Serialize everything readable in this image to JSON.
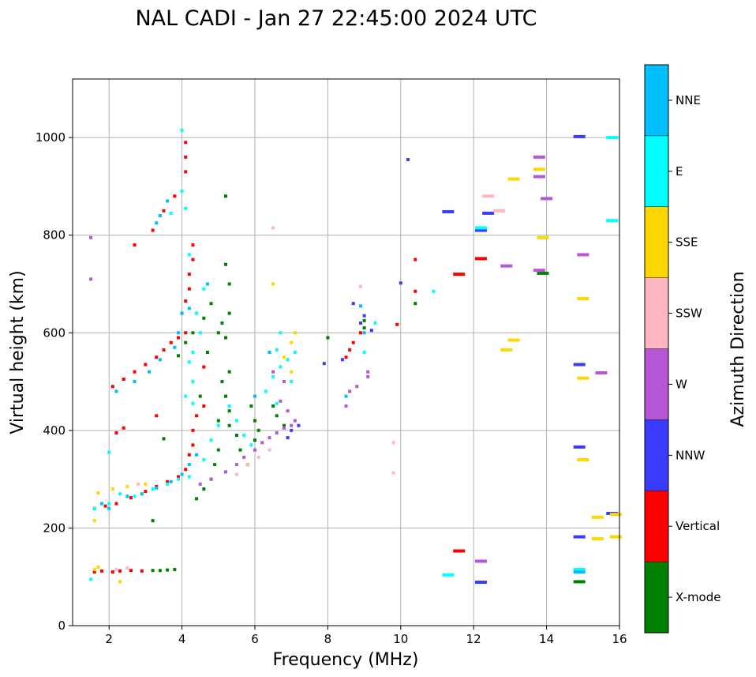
{
  "chart_data": {
    "type": "scatter",
    "title": "NAL CADI - Jan 27 22:45:00 2024 UTC",
    "xlabel": "Frequency (MHz)",
    "ylabel": "Virtual height (km)",
    "xlim": [
      1,
      16
    ],
    "ylim": [
      0,
      1120
    ],
    "xticks": [
      2,
      4,
      6,
      8,
      10,
      12,
      14,
      16
    ],
    "yticks": [
      0,
      200,
      400,
      600,
      800,
      1000
    ],
    "grid": true,
    "colorbar": {
      "label": "Azimuth Direction",
      "categories": [
        {
          "name": "X-mode",
          "color": "#008000"
        },
        {
          "name": "Vertical",
          "color": "#ff0000"
        },
        {
          "name": "NNW",
          "color": "#3b3bff"
        },
        {
          "name": "W",
          "color": "#b657d6"
        },
        {
          "name": "SSW",
          "color": "#ffb6c1"
        },
        {
          "name": "SSE",
          "color": "#ffd700"
        },
        {
          "name": "E",
          "color": "#00ffff"
        },
        {
          "name": "NNE",
          "color": "#00bfff"
        }
      ]
    },
    "series": [
      {
        "name": "X-mode",
        "points": [
          [
            3.2,
            113
          ],
          [
            3.4,
            113
          ],
          [
            3.6,
            114
          ],
          [
            3.8,
            115
          ],
          [
            3.2,
            215
          ],
          [
            3.5,
            383
          ],
          [
            3.9,
            553
          ],
          [
            4.1,
            580
          ],
          [
            4.3,
            600
          ],
          [
            4.6,
            630
          ],
          [
            4.8,
            660
          ],
          [
            4.5,
            470
          ],
          [
            4.7,
            560
          ],
          [
            5.0,
            600
          ],
          [
            5.2,
            740
          ],
          [
            5.3,
            700
          ],
          [
            5.3,
            640
          ],
          [
            5.1,
            620
          ],
          [
            5.2,
            590
          ],
          [
            5.3,
            520
          ],
          [
            5.1,
            500
          ],
          [
            5.2,
            470
          ],
          [
            5.3,
            440
          ],
          [
            5.0,
            420
          ],
          [
            5.3,
            410
          ],
          [
            5.5,
            390
          ],
          [
            5.6,
            360
          ],
          [
            5.8,
            330
          ],
          [
            5.0,
            360
          ],
          [
            4.9,
            330
          ],
          [
            4.8,
            300
          ],
          [
            4.6,
            280
          ],
          [
            4.4,
            260
          ],
          [
            5.2,
            880
          ],
          [
            6.0,
            380
          ],
          [
            6.0,
            420
          ],
          [
            5.9,
            450
          ],
          [
            6.1,
            400
          ],
          [
            6.5,
            450
          ],
          [
            6.6,
            430
          ],
          [
            6.8,
            410
          ],
          [
            8.0,
            590
          ],
          [
            9.0,
            610
          ],
          [
            9.0,
            625
          ],
          [
            10.4,
            660
          ],
          [
            13.9,
            722
          ],
          [
            14.9,
            90
          ]
        ]
      },
      {
        "name": "Vertical",
        "points": [
          [
            1.6,
            110
          ],
          [
            1.8,
            112
          ],
          [
            2.1,
            110
          ],
          [
            2.3,
            112
          ],
          [
            2.6,
            113
          ],
          [
            2.9,
            112
          ],
          [
            1.6,
            240
          ],
          [
            1.9,
            245
          ],
          [
            2.2,
            250
          ],
          [
            2.6,
            262
          ],
          [
            3.0,
            275
          ],
          [
            3.3,
            285
          ],
          [
            3.6,
            295
          ],
          [
            3.9,
            305
          ],
          [
            4.1,
            320
          ],
          [
            4.2,
            350
          ],
          [
            4.3,
            370
          ],
          [
            4.3,
            400
          ],
          [
            4.4,
            430
          ],
          [
            4.6,
            450
          ],
          [
            4.6,
            530
          ],
          [
            2.2,
            395
          ],
          [
            2.4,
            405
          ],
          [
            2.1,
            490
          ],
          [
            2.4,
            505
          ],
          [
            2.7,
            520
          ],
          [
            3.0,
            535
          ],
          [
            3.3,
            550
          ],
          [
            3.5,
            565
          ],
          [
            3.7,
            580
          ],
          [
            3.9,
            590
          ],
          [
            4.1,
            600
          ],
          [
            4.0,
            640
          ],
          [
            4.1,
            665
          ],
          [
            4.2,
            690
          ],
          [
            4.2,
            720
          ],
          [
            4.3,
            750
          ],
          [
            4.3,
            780
          ],
          [
            2.7,
            780
          ],
          [
            3.2,
            810
          ],
          [
            3.5,
            850
          ],
          [
            3.8,
            880
          ],
          [
            4.1,
            930
          ],
          [
            4.1,
            960
          ],
          [
            4.1,
            990
          ],
          [
            3.3,
            430
          ],
          [
            8.5,
            550
          ],
          [
            8.6,
            565
          ],
          [
            8.7,
            580
          ],
          [
            8.9,
            600
          ],
          [
            9.9,
            617
          ],
          [
            10.4,
            685
          ],
          [
            10.4,
            750
          ],
          [
            11.6,
            720
          ],
          [
            12.2,
            752
          ],
          [
            11.6,
            153
          ]
        ]
      },
      {
        "name": "NNW",
        "points": [
          [
            8.7,
            660
          ],
          [
            8.9,
            620
          ],
          [
            9.0,
            635
          ],
          [
            8.4,
            545
          ],
          [
            9.2,
            605
          ],
          [
            10.2,
            955
          ],
          [
            11.3,
            848
          ],
          [
            12.2,
            810
          ],
          [
            12.4,
            845
          ],
          [
            14.9,
            1002
          ],
          [
            14.9,
            535
          ],
          [
            14.9,
            366
          ],
          [
            14.9,
            182
          ],
          [
            15.8,
            230
          ],
          [
            10.0,
            702
          ],
          [
            7.9,
            537
          ],
          [
            12.2,
            89
          ],
          [
            7.2,
            410
          ],
          [
            7.0,
            400
          ],
          [
            6.9,
            385
          ]
        ]
      },
      {
        "name": "W",
        "points": [
          [
            4.5,
            290
          ],
          [
            4.8,
            300
          ],
          [
            5.2,
            315
          ],
          [
            5.5,
            330
          ],
          [
            5.7,
            345
          ],
          [
            6.0,
            360
          ],
          [
            6.2,
            375
          ],
          [
            6.4,
            385
          ],
          [
            6.6,
            395
          ],
          [
            6.8,
            405
          ],
          [
            7.0,
            410
          ],
          [
            7.1,
            420
          ],
          [
            6.9,
            440
          ],
          [
            6.7,
            460
          ],
          [
            6.5,
            520
          ],
          [
            6.8,
            500
          ],
          [
            9.1,
            510
          ],
          [
            9.1,
            520
          ],
          [
            8.8,
            490
          ],
          [
            8.6,
            480
          ],
          [
            8.5,
            450
          ],
          [
            12.9,
            737
          ],
          [
            13.8,
            728
          ],
          [
            14.0,
            875
          ],
          [
            13.8,
            960
          ],
          [
            13.8,
            920
          ],
          [
            15.0,
            760
          ],
          [
            15.5,
            518
          ],
          [
            12.2,
            132
          ],
          [
            1.5,
            795
          ],
          [
            1.5,
            710
          ]
        ]
      },
      {
        "name": "SSW",
        "points": [
          [
            2.2,
            115
          ],
          [
            2.5,
            118
          ],
          [
            5.5,
            310
          ],
          [
            5.8,
            330
          ],
          [
            6.1,
            345
          ],
          [
            6.4,
            360
          ],
          [
            6.5,
            815
          ],
          [
            8.9,
            695
          ],
          [
            9.8,
            375
          ],
          [
            9.8,
            313
          ],
          [
            12.4,
            880
          ],
          [
            12.7,
            850
          ],
          [
            2.8,
            290
          ]
        ]
      },
      {
        "name": "SSE",
        "points": [
          [
            1.6,
            115
          ],
          [
            1.7,
            120
          ],
          [
            2.3,
            90
          ],
          [
            1.6,
            215
          ],
          [
            1.7,
            272
          ],
          [
            2.1,
            280
          ],
          [
            2.5,
            285
          ],
          [
            3.0,
            290
          ],
          [
            6.5,
            700
          ],
          [
            6.8,
            550
          ],
          [
            7.0,
            520
          ],
          [
            7.0,
            580
          ],
          [
            7.1,
            600
          ],
          [
            12.9,
            565
          ],
          [
            13.1,
            585
          ],
          [
            13.1,
            915
          ],
          [
            13.8,
            935
          ],
          [
            13.9,
            795
          ],
          [
            15.0,
            670
          ],
          [
            15.0,
            507
          ],
          [
            15.0,
            340
          ],
          [
            15.4,
            222
          ],
          [
            15.4,
            178
          ],
          [
            15.9,
            182
          ],
          [
            15.9,
            228
          ]
        ]
      },
      {
        "name": "E",
        "points": [
          [
            1.5,
            95
          ],
          [
            1.6,
            240
          ],
          [
            2.0,
            250
          ],
          [
            2.3,
            270
          ],
          [
            2.7,
            265
          ],
          [
            3.2,
            280
          ],
          [
            3.6,
            290
          ],
          [
            3.9,
            300
          ],
          [
            4.2,
            305
          ],
          [
            4.6,
            340
          ],
          [
            4.8,
            380
          ],
          [
            5.0,
            410
          ],
          [
            5.3,
            450
          ],
          [
            5.5,
            420
          ],
          [
            5.7,
            390
          ],
          [
            5.9,
            370
          ],
          [
            4.3,
            455
          ],
          [
            4.1,
            470
          ],
          [
            4.3,
            500
          ],
          [
            4.2,
            540
          ],
          [
            4.3,
            560
          ],
          [
            4.5,
            600
          ],
          [
            4.4,
            640
          ],
          [
            4.6,
            690
          ],
          [
            4.2,
            760
          ],
          [
            4.0,
            890
          ],
          [
            4.1,
            855
          ],
          [
            3.7,
            845
          ],
          [
            4.0,
            1015
          ],
          [
            6.3,
            480
          ],
          [
            6.5,
            510
          ],
          [
            6.7,
            530
          ],
          [
            6.9,
            545
          ],
          [
            7.1,
            560
          ],
          [
            7.0,
            500
          ],
          [
            6.6,
            455
          ],
          [
            6.6,
            565
          ],
          [
            6.7,
            600
          ],
          [
            9.0,
            560
          ],
          [
            9.3,
            620
          ],
          [
            10.9,
            685
          ],
          [
            12.2,
            815
          ],
          [
            14.9,
            115
          ],
          [
            15.8,
            1000
          ],
          [
            15.8,
            830
          ],
          [
            2.0,
            355
          ],
          [
            11.3,
            104
          ]
        ]
      },
      {
        "name": "NNE",
        "points": [
          [
            1.8,
            250
          ],
          [
            2.0,
            240
          ],
          [
            2.5,
            265
          ],
          [
            2.9,
            270
          ],
          [
            3.3,
            282
          ],
          [
            3.7,
            295
          ],
          [
            4.0,
            310
          ],
          [
            4.2,
            330
          ],
          [
            4.4,
            350
          ],
          [
            3.3,
            825
          ],
          [
            3.4,
            840
          ],
          [
            3.6,
            870
          ],
          [
            4.0,
            640
          ],
          [
            4.2,
            650
          ],
          [
            2.2,
            480
          ],
          [
            2.7,
            500
          ],
          [
            3.1,
            520
          ],
          [
            3.4,
            545
          ],
          [
            3.8,
            570
          ],
          [
            3.9,
            600
          ],
          [
            4.7,
            700
          ],
          [
            8.9,
            655
          ],
          [
            9.0,
            600
          ],
          [
            8.5,
            470
          ],
          [
            6.4,
            560
          ],
          [
            6.0,
            470
          ],
          [
            14.9,
            110
          ]
        ]
      }
    ]
  }
}
